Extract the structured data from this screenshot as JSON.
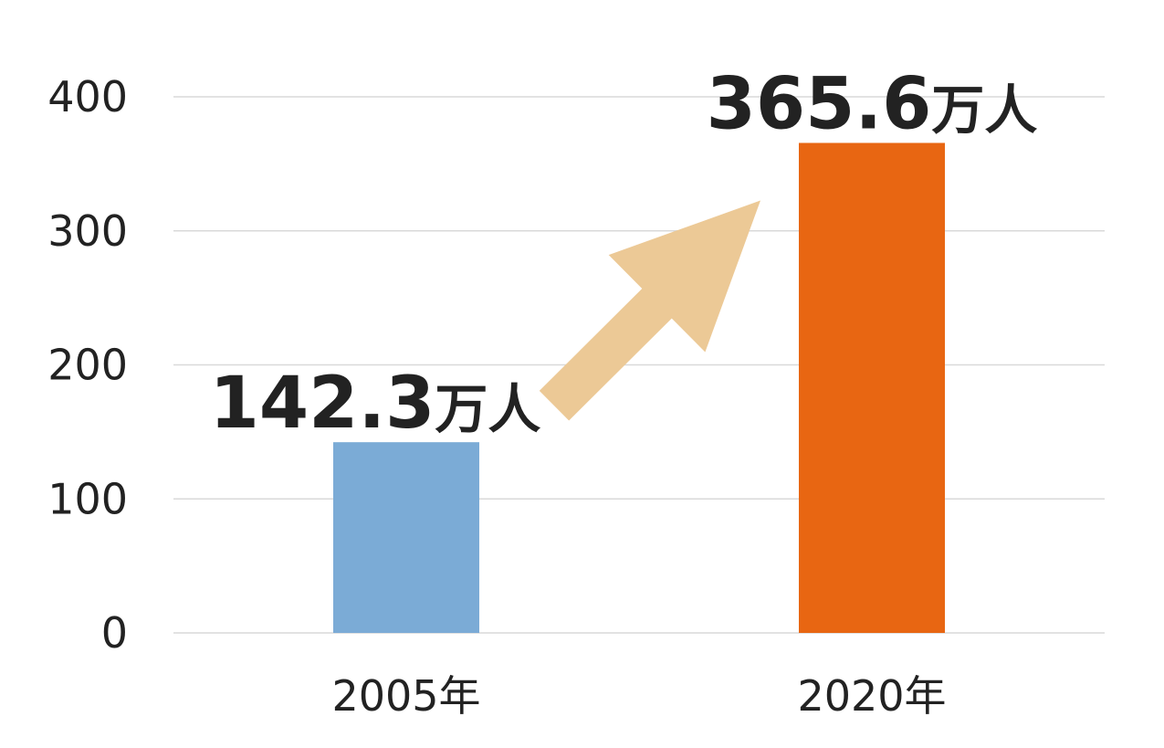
{
  "chart_data": {
    "type": "bar",
    "title": "",
    "xlabel": "",
    "ylabel": "",
    "categories": [
      "2005年",
      "2020年"
    ],
    "values": [
      142.3,
      365.6
    ],
    "data_labels": [
      {
        "number": "142.3",
        "unit": "万人"
      },
      {
        "number": "365.6",
        "unit": "万人"
      }
    ],
    "yticks": [
      "0",
      "100",
      "200",
      "300",
      "400"
    ],
    "ylim": [
      0,
      400
    ],
    "grid": true,
    "legend": "none",
    "annotation": "upward-arrow",
    "colors": {
      "bars": [
        "#7babd6",
        "#e86612"
      ],
      "arrow": "#ecc996",
      "grid": "#d9d9d9",
      "text": "#222222"
    }
  }
}
